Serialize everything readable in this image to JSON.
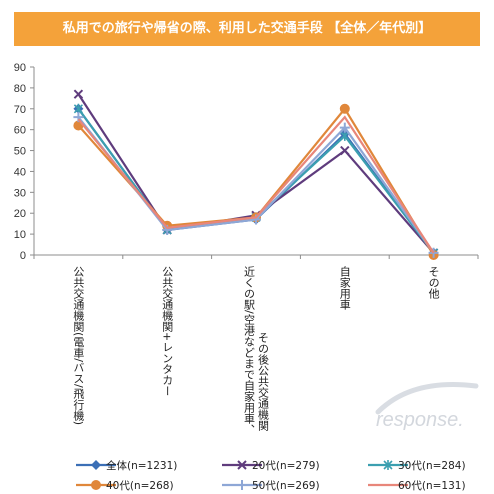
{
  "chart_data": {
    "type": "line",
    "title": "私用での旅行や帰省の際、利用した交通手段 【全体／年代別】",
    "ylim": [
      0,
      90
    ],
    "yticks": [
      0,
      10,
      20,
      30,
      40,
      50,
      60,
      70,
      80,
      90
    ],
    "grid": false,
    "legend_position": "bottom",
    "categories": [
      "公共交通機関(電車/バス/飛行機)",
      "公共交通機関+レンタカー",
      "近くの駅/空港などまで自家用車、その後公共交通機関",
      "自家用車",
      "その他"
    ],
    "series": [
      {
        "name": "全体(n=1231)",
        "values": [
          70,
          12,
          17,
          58,
          1
        ],
        "color": "#3b6fb6",
        "marker": "diamond"
      },
      {
        "name": "20代(n=279)",
        "values": [
          77,
          12,
          19,
          50,
          1
        ],
        "color": "#5f3c7d",
        "marker": "x"
      },
      {
        "name": "30代(n=284)",
        "values": [
          70,
          12,
          18,
          57,
          1
        ],
        "color": "#3b9fb0",
        "marker": "star"
      },
      {
        "name": "40代(n=268)",
        "values": [
          62,
          14,
          18,
          70,
          0
        ],
        "color": "#e0873a",
        "marker": "circle"
      },
      {
        "name": "50代(n=269)",
        "values": [
          66,
          12,
          17,
          61,
          1
        ],
        "color": "#8ea7d6",
        "marker": "plus"
      },
      {
        "name": "60代(n=131)",
        "values": [
          65,
          13,
          18,
          66,
          1
        ],
        "color": "#e8867a",
        "marker": "none"
      }
    ]
  },
  "watermark": "response."
}
